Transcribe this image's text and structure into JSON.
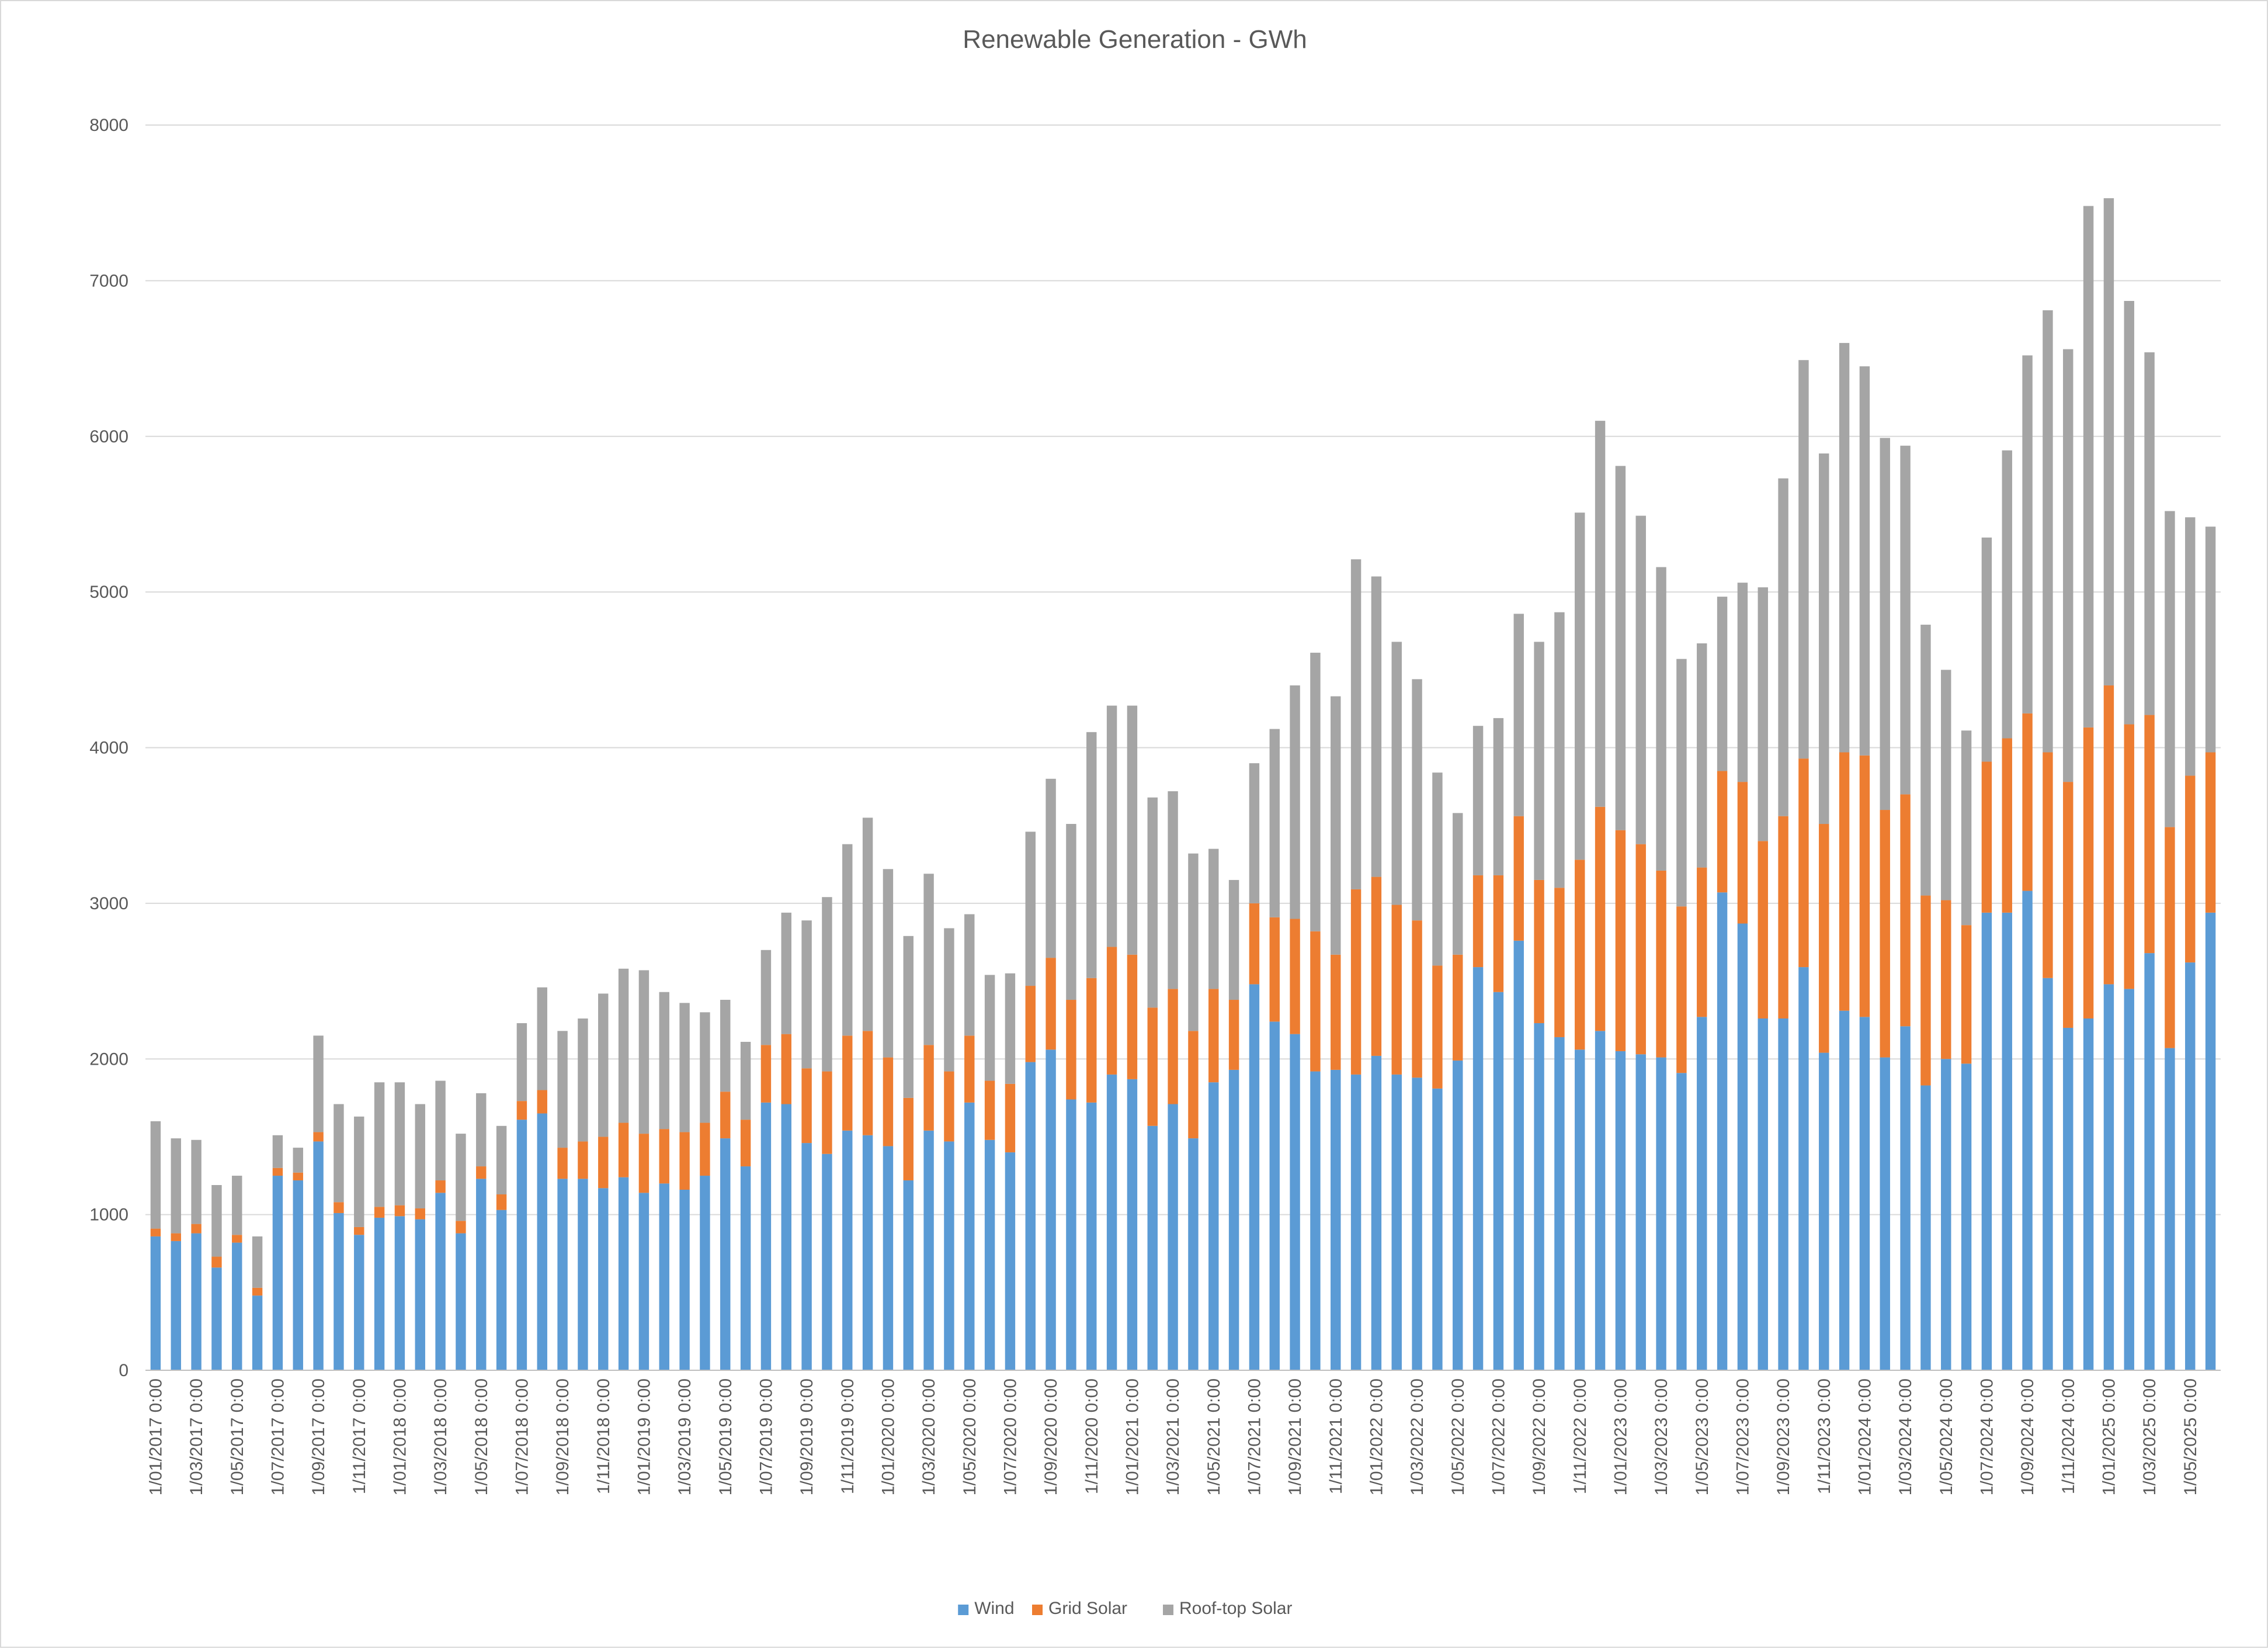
{
  "chart_data": {
    "type": "bar",
    "stacked": true,
    "title": "Renewable Generation - GWh",
    "xlabel": "",
    "ylabel": "",
    "ylim": [
      0,
      8000
    ],
    "yticks": [
      0,
      1000,
      2000,
      3000,
      4000,
      5000,
      6000,
      7000,
      8000
    ],
    "grid": true,
    "legend_position": "bottom",
    "colors": {
      "Wind": "#5b9bd5",
      "Grid Solar": "#ed7d31",
      "Roof-top Solar": "#a5a5a5"
    },
    "x_tick_labels": [
      "1/01/2017 0:00",
      "1/03/2017 0:00",
      "1/05/2017 0:00",
      "1/07/2017 0:00",
      "1/09/2017 0:00",
      "1/11/2017 0:00",
      "1/01/2018 0:00",
      "1/03/2018 0:00",
      "1/05/2018 0:00",
      "1/07/2018 0:00",
      "1/09/2018 0:00",
      "1/11/2018 0:00",
      "1/01/2019 0:00",
      "1/03/2019 0:00",
      "1/05/2019 0:00",
      "1/07/2019 0:00",
      "1/09/2019 0:00",
      "1/11/2019 0:00",
      "1/01/2020 0:00",
      "1/03/2020 0:00",
      "1/05/2020 0:00",
      "1/07/2020 0:00",
      "1/09/2020 0:00",
      "1/11/2020 0:00",
      "1/01/2021 0:00",
      "1/03/2021 0:00",
      "1/05/2021 0:00",
      "1/07/2021 0:00",
      "1/09/2021 0:00",
      "1/11/2021 0:00",
      "1/01/2022 0:00",
      "1/03/2022 0:00",
      "1/05/2022 0:00",
      "1/07/2022 0:00",
      "1/09/2022 0:00",
      "1/11/2022 0:00",
      "1/01/2023 0:00",
      "1/03/2023 0:00",
      "1/05/2023 0:00",
      "1/07/2023 0:00",
      "1/09/2023 0:00",
      "1/11/2023 0:00",
      "1/01/2024 0:00",
      "1/03/2024 0:00",
      "1/05/2024 0:00",
      "1/07/2024 0:00",
      "1/09/2024 0:00",
      "1/11/2024 0:00",
      "1/01/2025 0:00",
      "1/03/2025 0:00",
      "1/05/2025 0:00"
    ],
    "series": [
      {
        "name": "Wind",
        "values": [
          860,
          830,
          880,
          660,
          820,
          480,
          1250,
          1220,
          1470,
          1010,
          870,
          980,
          990,
          970,
          1140,
          880,
          1230,
          1030,
          1610,
          1650,
          1230,
          1230,
          1170,
          1240,
          1140,
          1200,
          1160,
          1250,
          1490,
          1310,
          1720,
          1710,
          1460,
          1390,
          1540,
          1510,
          1440,
          1220,
          1540,
          1470,
          1720,
          1480,
          1400,
          1980,
          2060,
          1740,
          1720,
          1900,
          1870,
          1570,
          1710,
          1490,
          1850,
          1930,
          2480,
          2240,
          2160,
          1920,
          1930,
          1900,
          2020,
          1900,
          1880,
          1810,
          1990,
          2590,
          2430,
          2760,
          2230,
          2140,
          2060,
          2180,
          2050,
          2030,
          2010,
          1910,
          2270,
          3070,
          2870,
          2260,
          2260,
          2590,
          2040,
          2310,
          2270,
          2010,
          2210,
          1830,
          2000,
          1970,
          2940,
          2940,
          3080,
          2520,
          2200,
          2260,
          2480,
          2450,
          2680,
          2070,
          2620,
          2940
        ]
      },
      {
        "name": "Grid Solar",
        "values": [
          50,
          50,
          60,
          70,
          50,
          50,
          50,
          50,
          60,
          70,
          50,
          70,
          70,
          70,
          80,
          80,
          80,
          100,
          120,
          150,
          200,
          240,
          330,
          350,
          380,
          350,
          370,
          340,
          300,
          300,
          370,
          450,
          480,
          530,
          610,
          670,
          570,
          530,
          550,
          450,
          430,
          380,
          440,
          490,
          590,
          640,
          800,
          820,
          800,
          760,
          740,
          690,
          600,
          450,
          520,
          670,
          740,
          900,
          740,
          1190,
          1150,
          1090,
          1010,
          790,
          680,
          590,
          750,
          800,
          920,
          960,
          1220,
          1440,
          1420,
          1350,
          1200,
          1070,
          960,
          780,
          910,
          1140,
          1300,
          1340,
          1470,
          1660,
          1680,
          1590,
          1490,
          1220,
          1020,
          890,
          970,
          1120,
          1140,
          1450,
          1580,
          1870,
          1920,
          1700,
          1530,
          1420,
          1200,
          1030
        ]
      },
      {
        "name": "Roof-top Solar",
        "values": [
          690,
          610,
          540,
          460,
          380,
          330,
          210,
          160,
          620,
          630,
          710,
          800,
          790,
          670,
          640,
          560,
          470,
          440,
          500,
          660,
          750,
          790,
          920,
          990,
          1050,
          880,
          830,
          710,
          590,
          500,
          610,
          780,
          950,
          1120,
          1230,
          1370,
          1210,
          1040,
          1100,
          920,
          780,
          680,
          710,
          990,
          1150,
          1130,
          1580,
          1550,
          1600,
          1350,
          1270,
          1140,
          900,
          770,
          900,
          1210,
          1500,
          1790,
          1660,
          2120,
          1930,
          1690,
          1550,
          1240,
          910,
          960,
          1010,
          1300,
          1530,
          1770,
          2230,
          2480,
          2340,
          2110,
          1950,
          1590,
          1440,
          1120,
          1280,
          1630,
          2170,
          2560,
          2380,
          2630,
          2500,
          2390,
          2240,
          1740,
          1480,
          1250,
          1440,
          1850,
          2300,
          2840,
          2780,
          3350,
          3130,
          2720,
          2330,
          2030,
          1660,
          1450
        ]
      }
    ]
  }
}
